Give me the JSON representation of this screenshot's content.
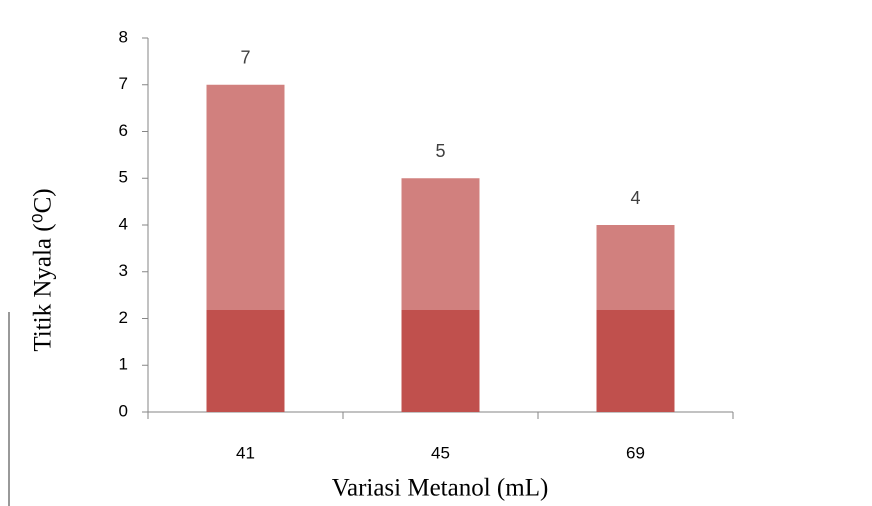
{
  "chart_data": {
    "type": "bar",
    "categories": [
      "41",
      "45",
      "69"
    ],
    "values": [
      7,
      5,
      4
    ],
    "color": "#c0504d",
    "xlabel": "Variasi Metanol (mL)",
    "ylabel": "Titik Nyala (⁰C)",
    "ylim": [
      0,
      8
    ],
    "yticks": [
      0,
      1,
      2,
      3,
      4,
      5,
      6,
      7,
      8
    ],
    "data_labels": true
  }
}
